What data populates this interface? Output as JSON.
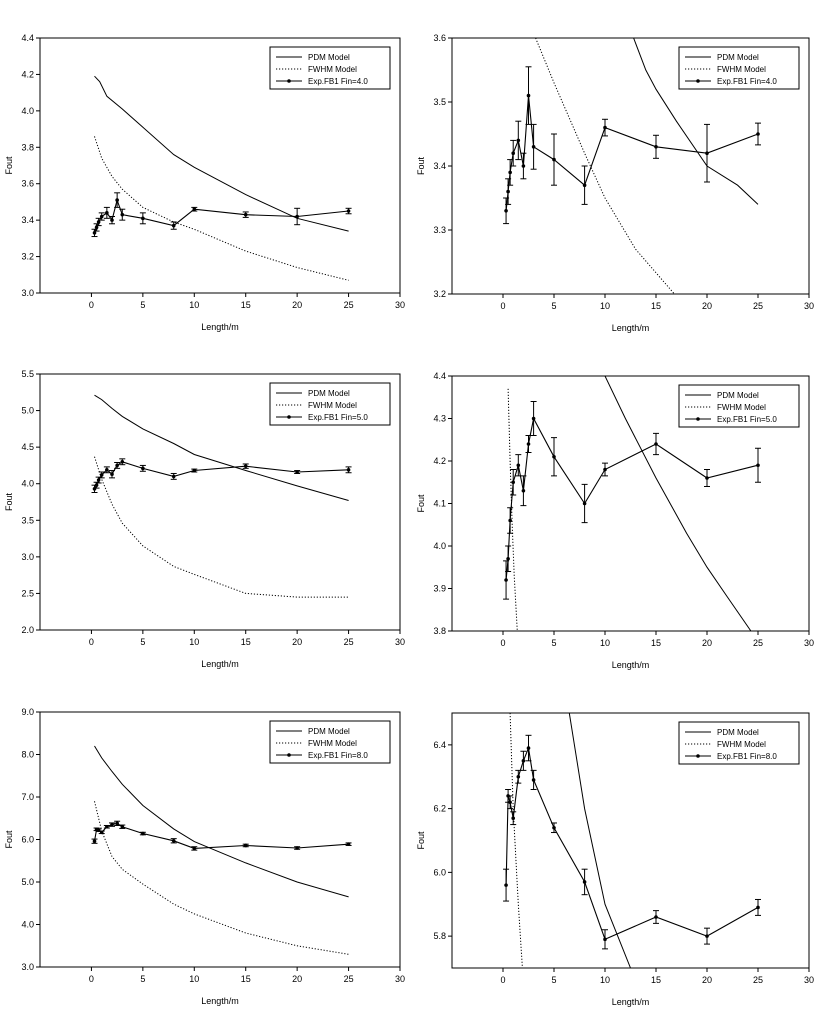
{
  "chart_data": [
    {
      "type": "line",
      "panel": "top-left",
      "xlabel": "Length/m",
      "ylabel": "Fout",
      "xlim": [
        -5,
        30
      ],
      "ylim": [
        3.0,
        4.4
      ],
      "xticks": [
        0,
        5,
        10,
        15,
        20,
        25,
        30
      ],
      "yticks": [
        3.0,
        3.2,
        3.4,
        3.6,
        3.8,
        4.0,
        4.2,
        4.4
      ],
      "ytick_labels": [
        "3.0",
        "3.2",
        "3.4",
        "3.6",
        "3.8",
        "4.0",
        "4.2",
        "4.4"
      ],
      "legend_position": "top-right",
      "series": [
        {
          "name": "PDM Model",
          "style": "solid",
          "x": [
            0.3,
            0.8,
            1.5,
            3,
            5,
            8,
            10,
            15,
            20,
            25
          ],
          "y": [
            4.19,
            4.16,
            4.08,
            4.01,
            3.91,
            3.76,
            3.69,
            3.54,
            3.41,
            3.34
          ]
        },
        {
          "name": "FWHM Model",
          "style": "dotted",
          "x": [
            0.3,
            1,
            2,
            3,
            5,
            8,
            10,
            15,
            20,
            25
          ],
          "y": [
            3.86,
            3.74,
            3.64,
            3.57,
            3.47,
            3.39,
            3.35,
            3.23,
            3.14,
            3.07
          ]
        },
        {
          "name": "Exp.FB1 Fin=4.0",
          "style": "marker",
          "x": [
            0.3,
            0.5,
            0.7,
            1,
            1.5,
            2,
            2.5,
            3,
            5,
            8,
            10,
            15,
            20,
            25
          ],
          "y": [
            3.33,
            3.36,
            3.39,
            3.42,
            3.44,
            3.4,
            3.51,
            3.43,
            3.41,
            3.37,
            3.46,
            3.43,
            3.42,
            3.45
          ],
          "err": [
            0.02,
            0.02,
            0.02,
            0.02,
            0.03,
            0.02,
            0.04,
            0.03,
            0.03,
            0.02,
            0.01,
            0.015,
            0.045,
            0.015
          ]
        }
      ]
    },
    {
      "type": "line",
      "panel": "top-right",
      "xlabel": "Length/m",
      "ylabel": "Fout",
      "xlim": [
        -5,
        30
      ],
      "ylim": [
        3.2,
        3.6
      ],
      "xticks": [
        0,
        5,
        10,
        15,
        20,
        25,
        30
      ],
      "yticks": [
        3.2,
        3.3,
        3.4,
        3.5,
        3.6
      ],
      "ytick_labels": [
        "3.2",
        "3.3",
        "3.4",
        "3.5",
        "3.6"
      ],
      "legend_position": "top-right",
      "series": [
        {
          "name": "PDM Model",
          "style": "solid",
          "x": [
            12.8,
            14,
            15,
            17,
            20,
            23,
            25
          ],
          "y": [
            3.6,
            3.55,
            3.52,
            3.47,
            3.4,
            3.37,
            3.34
          ]
        },
        {
          "name": "FWHM Model",
          "style": "dotted",
          "x": [
            3.2,
            5,
            8,
            10,
            13,
            16.8
          ],
          "y": [
            3.6,
            3.53,
            3.42,
            3.35,
            3.27,
            3.2
          ]
        },
        {
          "name": "Exp.FB1 Fin=4.0",
          "style": "marker",
          "x": [
            0.3,
            0.5,
            0.7,
            1,
            1.5,
            2,
            2.5,
            3,
            5,
            8,
            10,
            15,
            20,
            25
          ],
          "y": [
            3.33,
            3.36,
            3.39,
            3.42,
            3.44,
            3.4,
            3.51,
            3.43,
            3.41,
            3.37,
            3.46,
            3.43,
            3.42,
            3.45
          ],
          "err": [
            0.02,
            0.02,
            0.02,
            0.02,
            0.03,
            0.02,
            0.045,
            0.035,
            0.04,
            0.03,
            0.013,
            0.018,
            0.045,
            0.017
          ]
        }
      ]
    },
    {
      "type": "line",
      "panel": "middle-left",
      "xlabel": "Length/m",
      "ylabel": "Fout",
      "xlim": [
        -5,
        30
      ],
      "ylim": [
        2.0,
        5.5
      ],
      "xticks": [
        0,
        5,
        10,
        15,
        20,
        25,
        30
      ],
      "yticks": [
        2.0,
        2.5,
        3.0,
        3.5,
        4.0,
        4.5,
        5.0,
        5.5
      ],
      "ytick_labels": [
        "2.0",
        "2.5",
        "3.0",
        "3.5",
        "4.0",
        "4.5",
        "5.0",
        "5.5"
      ],
      "legend_position": "top-right",
      "series": [
        {
          "name": "PDM Model",
          "style": "solid",
          "x": [
            0.3,
            1,
            2,
            3,
            5,
            8,
            10,
            15,
            20,
            25
          ],
          "y": [
            5.21,
            5.15,
            5.03,
            4.92,
            4.75,
            4.55,
            4.4,
            4.18,
            3.97,
            3.77
          ]
        },
        {
          "name": "FWHM Model",
          "style": "dotted",
          "x": [
            0.3,
            1,
            2,
            3,
            5,
            8,
            10,
            15,
            20,
            25
          ],
          "y": [
            4.37,
            4.06,
            3.72,
            3.46,
            3.15,
            2.87,
            2.76,
            2.5,
            2.45,
            2.45
          ]
        },
        {
          "name": "Exp.FB1 Fin=5.0",
          "style": "marker",
          "x": [
            0.3,
            0.5,
            0.7,
            1,
            1.5,
            2,
            2.5,
            3,
            5,
            8,
            10,
            15,
            20,
            25
          ],
          "y": [
            3.93,
            3.98,
            4.05,
            4.12,
            4.19,
            4.13,
            4.25,
            4.3,
            4.21,
            4.1,
            4.18,
            4.24,
            4.16,
            4.19
          ],
          "err": [
            0.05,
            0.04,
            0.04,
            0.04,
            0.04,
            0.05,
            0.04,
            0.04,
            0.04,
            0.04,
            0.02,
            0.03,
            0.02,
            0.04
          ]
        }
      ]
    },
    {
      "type": "line",
      "panel": "middle-right",
      "xlabel": "Length/m",
      "ylabel": "Fout",
      "xlim": [
        -5,
        30
      ],
      "ylim": [
        3.8,
        4.4
      ],
      "xticks": [
        0,
        5,
        10,
        15,
        20,
        25,
        30
      ],
      "yticks": [
        3.8,
        3.9,
        4.0,
        4.1,
        4.2,
        4.3,
        4.4
      ],
      "ytick_labels": [
        "3.8",
        "3.9",
        "4.0",
        "4.1",
        "4.2",
        "4.3",
        "4.4"
      ],
      "legend_position": "top-right",
      "series": [
        {
          "name": "PDM Model",
          "style": "solid",
          "x": [
            10,
            12,
            15,
            18,
            20,
            22,
            24.3
          ],
          "y": [
            4.4,
            4.3,
            4.16,
            4.03,
            3.95,
            3.88,
            3.8
          ]
        },
        {
          "name": "FWHM Model",
          "style": "dotted",
          "x": [
            0.5,
            0.7,
            0.9,
            1.1,
            1.4
          ],
          "y": [
            4.37,
            4.2,
            4.05,
            3.93,
            3.8
          ]
        },
        {
          "name": "Exp.FB1 Fin=5.0",
          "style": "marker",
          "x": [
            0.3,
            0.5,
            0.7,
            1,
            1.5,
            2,
            2.5,
            3,
            5,
            8,
            10,
            15,
            20,
            25
          ],
          "y": [
            3.92,
            3.97,
            4.06,
            4.15,
            4.19,
            4.13,
            4.24,
            4.3,
            4.21,
            4.1,
            4.18,
            4.24,
            4.16,
            4.19
          ],
          "err": [
            0.045,
            0.03,
            0.03,
            0.03,
            0.025,
            0.035,
            0.02,
            0.04,
            0.045,
            0.045,
            0.015,
            0.025,
            0.02,
            0.04
          ]
        }
      ]
    },
    {
      "type": "line",
      "panel": "bottom-left",
      "xlabel": "Length/m",
      "ylabel": "Fout",
      "xlim": [
        -5,
        30
      ],
      "ylim": [
        3.0,
        9.0
      ],
      "xticks": [
        0,
        5,
        10,
        15,
        20,
        25,
        30
      ],
      "yticks": [
        3.0,
        4.0,
        5.0,
        6.0,
        7.0,
        8.0,
        9.0
      ],
      "ytick_labels": [
        "3.0",
        "4.0",
        "5.0",
        "6.0",
        "7.0",
        "8.0",
        "9.0"
      ],
      "legend_position": "top-right",
      "series": [
        {
          "name": "PDM Model",
          "style": "solid",
          "x": [
            0.3,
            1,
            2,
            3,
            5,
            8,
            10,
            15,
            20,
            25
          ],
          "y": [
            8.2,
            7.92,
            7.6,
            7.3,
            6.8,
            6.25,
            5.95,
            5.45,
            5.0,
            4.65
          ]
        },
        {
          "name": "FWHM Model",
          "style": "dotted",
          "x": [
            0.3,
            1,
            2,
            3,
            5,
            8,
            10,
            15,
            20,
            25
          ],
          "y": [
            6.9,
            6.2,
            5.6,
            5.3,
            4.95,
            4.48,
            4.25,
            3.8,
            3.5,
            3.3
          ]
        },
        {
          "name": "Exp.FB1 Fin=8.0",
          "style": "marker",
          "x": [
            0.3,
            0.5,
            0.7,
            1,
            1.5,
            2,
            2.5,
            3,
            5,
            8,
            10,
            15,
            20,
            25
          ],
          "y": [
            5.96,
            6.24,
            6.22,
            6.17,
            6.3,
            6.35,
            6.38,
            6.3,
            6.14,
            5.97,
            5.79,
            5.86,
            5.8,
            5.89
          ],
          "err": [
            0.05,
            0.03,
            0.03,
            0.03,
            0.03,
            0.04,
            0.05,
            0.04,
            0.03,
            0.05,
            0.04,
            0.03,
            0.03,
            0.03
          ]
        }
      ]
    },
    {
      "type": "line",
      "panel": "bottom-right",
      "xlabel": "Length/m",
      "ylabel": "Fout",
      "xlim": [
        -5,
        30
      ],
      "ylim": [
        5.7,
        6.5
      ],
      "xticks": [
        0,
        5,
        10,
        15,
        20,
        25,
        30
      ],
      "yticks": [
        5.8,
        6.0,
        6.2,
        6.4
      ],
      "ytick_labels": [
        "5.8",
        "6.0",
        "6.2",
        "6.4"
      ],
      "legend_position": "top-right",
      "series": [
        {
          "name": "PDM Model",
          "style": "solid",
          "x": [
            6.5,
            8,
            10,
            12.5
          ],
          "y": [
            6.5,
            6.2,
            5.9,
            5.7
          ]
        },
        {
          "name": "FWHM Model",
          "style": "dotted",
          "x": [
            0.7,
            1.0,
            1.5,
            1.9
          ],
          "y": [
            6.5,
            6.2,
            5.9,
            5.7
          ]
        },
        {
          "name": "Exp.FB1 Fin=8.0",
          "style": "marker",
          "x": [
            0.3,
            0.5,
            0.7,
            1,
            1.5,
            2,
            2.5,
            3,
            5,
            8,
            10,
            15,
            20,
            25
          ],
          "y": [
            5.96,
            6.24,
            6.22,
            6.17,
            6.3,
            6.35,
            6.39,
            6.29,
            6.14,
            5.97,
            5.79,
            5.86,
            5.8,
            5.89
          ],
          "err": [
            0.05,
            0.02,
            0.02,
            0.02,
            0.02,
            0.03,
            0.04,
            0.03,
            0.015,
            0.04,
            0.03,
            0.02,
            0.025,
            0.025
          ]
        }
      ]
    }
  ]
}
